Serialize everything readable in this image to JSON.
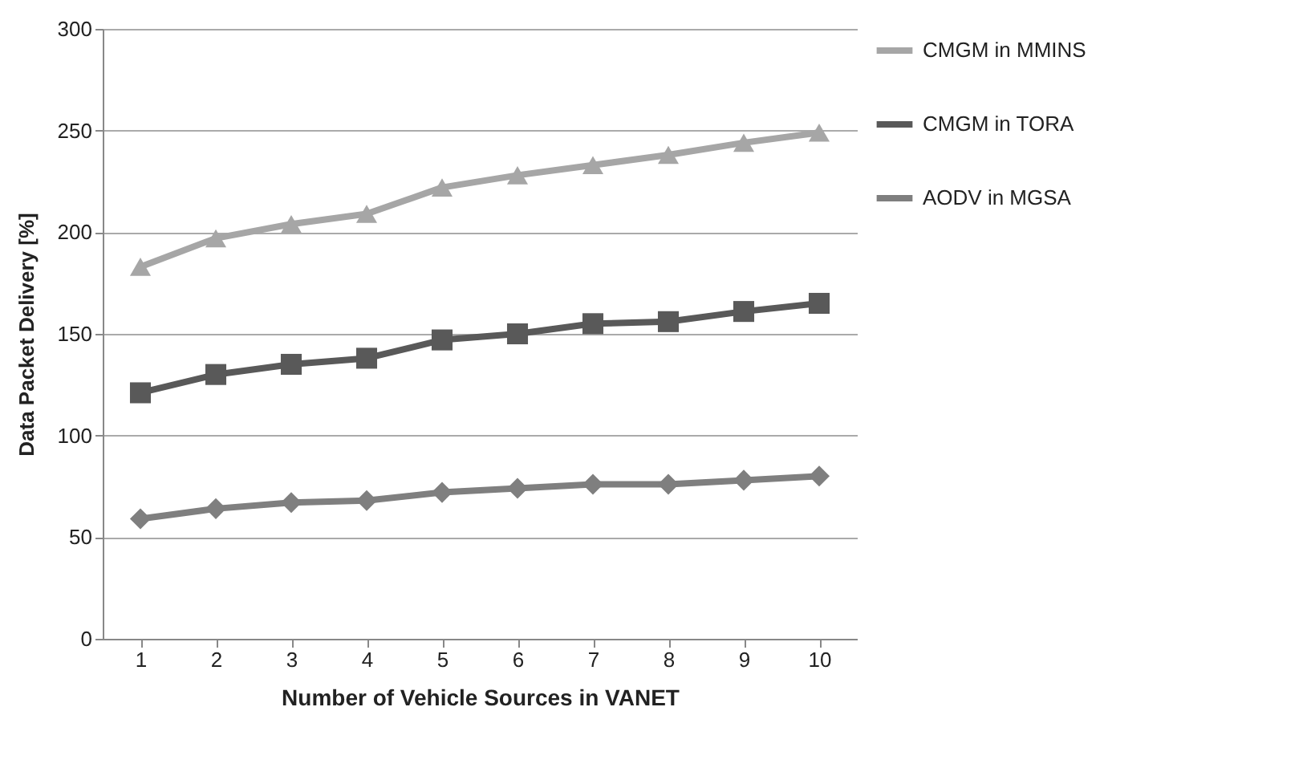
{
  "chart_data": {
    "type": "line",
    "xlabel": "Number of Vehicle Sources in VANET",
    "ylabel": "Data Packet Delivery [%]",
    "categories": [
      "1",
      "2",
      "3",
      "4",
      "5",
      "6",
      "7",
      "8",
      "9",
      "10"
    ],
    "series": [
      {
        "name": "CMGM in MMINS",
        "color": "#a6a6a6",
        "marker": "triangle",
        "values": [
          183,
          197,
          204,
          209,
          222,
          228,
          233,
          238,
          244,
          249
        ]
      },
      {
        "name": "CMGM in TORA",
        "color": "#595959",
        "marker": "square",
        "values": [
          121,
          130,
          135,
          138,
          147,
          150,
          155,
          156,
          161,
          165
        ]
      },
      {
        "name": "AODV in MGSA",
        "color": "#7f7f7f",
        "marker": "diamond",
        "values": [
          59,
          64,
          67,
          68,
          72,
          74,
          76,
          76,
          78,
          80
        ]
      }
    ],
    "ylim": [
      0,
      300
    ],
    "yticks": [
      0,
      50,
      100,
      150,
      200,
      250,
      300
    ],
    "grid": "y",
    "legend": "right"
  }
}
